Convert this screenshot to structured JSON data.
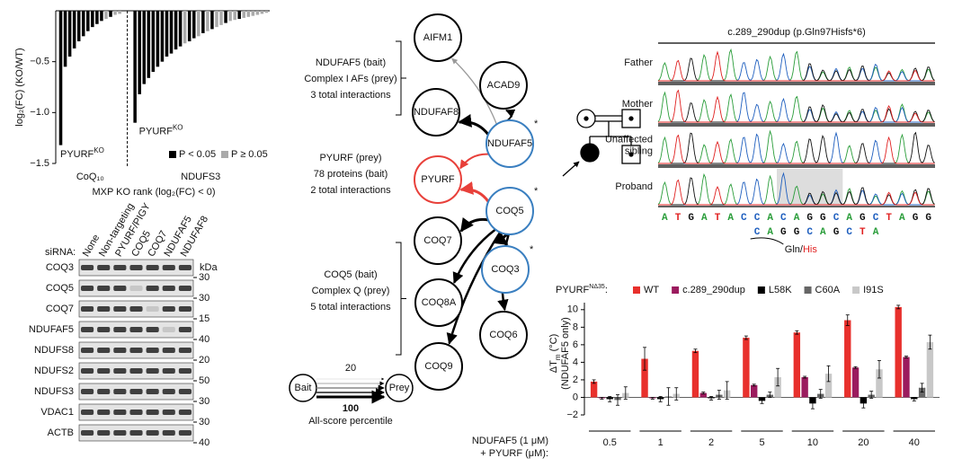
{
  "chart_data": [
    {
      "type": "bar",
      "ylabel": "log₂(FC) (KO/WT)",
      "xlabel": "MXP KO rank (log₂(FC) < 0)",
      "ylim": [
        -1.5,
        0
      ],
      "yticks": [
        {
          "value": -1.5,
          "label": "−1.5"
        },
        {
          "value": -1.0,
          "label": "−1.0"
        },
        {
          "value": -0.5,
          "label": "−0.5"
        }
      ],
      "legend": [
        {
          "name": "P < 0.05",
          "color": "#000000"
        },
        {
          "name": "P ≥ 0.05",
          "color": "#aaaaaa"
        }
      ],
      "groups": [
        {
          "name": "CoQ₁₀",
          "annotation": {
            "base": "PYURF",
            "sup": "KO"
          },
          "values": [
            -1.32,
            -0.55,
            -0.45,
            -0.37,
            -0.3,
            -0.25,
            -0.2,
            -0.16,
            -0.13,
            -0.1,
            -0.08,
            -0.06,
            -0.04,
            -0.03
          ],
          "significant": [
            true,
            true,
            true,
            true,
            true,
            true,
            true,
            true,
            true,
            true,
            false,
            true,
            false,
            false
          ]
        },
        {
          "name": "NDUFS3",
          "annotation": {
            "base": "PYURF",
            "sup": "KO"
          },
          "values": [
            -1.1,
            -0.82,
            -0.72,
            -0.66,
            -0.6,
            -0.55,
            -0.5,
            -0.45,
            -0.42,
            -0.38,
            -0.35,
            -0.32,
            -0.3,
            -0.27,
            -0.25,
            -0.22,
            -0.2,
            -0.18,
            -0.16,
            -0.14,
            -0.12,
            -0.1,
            -0.09,
            -0.08,
            -0.07,
            -0.06,
            -0.05,
            -0.04,
            -0.03,
            -0.02
          ],
          "significant": [
            true,
            true,
            true,
            true,
            true,
            true,
            true,
            true,
            true,
            true,
            true,
            false,
            true,
            true,
            false,
            true,
            false,
            true,
            false,
            false,
            true,
            false,
            false,
            true,
            false,
            false,
            false,
            false,
            false,
            false
          ]
        }
      ]
    },
    {
      "type": "grouped_bar",
      "legend_title": {
        "base": "PYURF",
        "sup": "NΔ35",
        "rest": ":"
      },
      "ylabel": {
        "base": "ΔT",
        "sub": "m",
        "rest": " (°C)",
        "line2": "(NDUFAF5 only)"
      },
      "xlabel": [
        "NDUFAF5 (1 μM)",
        "+ PYURF (μM):"
      ],
      "categories": [
        "0.5",
        "1",
        "2",
        "5",
        "10",
        "20",
        "40"
      ],
      "ylim": [
        -2,
        10.8
      ],
      "yticks": [
        {
          "value": -2,
          "label": "−2"
        },
        0,
        2,
        4,
        6,
        8,
        10
      ],
      "series": [
        {
          "name": "WT",
          "color": "#e8302c",
          "values": [
            1.8,
            4.4,
            5.3,
            6.8,
            7.4,
            8.8,
            10.3
          ],
          "errors": [
            0.2,
            1.3,
            0.2,
            0.2,
            0.2,
            0.6,
            0.2
          ]
        },
        {
          "name": "c.289_290dup",
          "color": "#9b1b5e",
          "values": [
            -0.1,
            -0.1,
            0.5,
            1.4,
            2.3,
            3.4,
            4.6
          ],
          "errors": [
            0.1,
            0.1,
            0.1,
            0.1,
            0.1,
            0.1,
            0.1
          ]
        },
        {
          "name": "L58K",
          "color": "#000000",
          "values": [
            -0.2,
            -0.2,
            -0.1,
            -0.4,
            -0.7,
            -0.7,
            -0.2
          ],
          "errors": [
            0.3,
            0.3,
            0.2,
            0.3,
            0.6,
            0.5,
            0.2
          ]
        },
        {
          "name": "C60A",
          "color": "#666666",
          "values": [
            -0.3,
            0.1,
            0.3,
            0.3,
            0.4,
            0.3,
            1.1
          ],
          "errors": [
            0.6,
            1.0,
            0.5,
            0.3,
            0.5,
            0.4,
            0.5
          ]
        },
        {
          "name": "I91S",
          "color": "#c8c8c8",
          "values": [
            0.5,
            0.4,
            0.8,
            2.3,
            2.7,
            3.2,
            6.3
          ],
          "errors": [
            0.7,
            0.7,
            1.0,
            1.0,
            0.9,
            1.0,
            0.8
          ]
        }
      ]
    }
  ],
  "blot": {
    "siRNA": "siRNA:",
    "kda": "kDa",
    "columns": [
      "None",
      "Non-targeting",
      "PYURF/PIGY",
      "COQ5",
      "COQ7",
      "NDUFAF5",
      "NDUFAF8"
    ],
    "rows": [
      {
        "protein": "COQ3",
        "marker": "30"
      },
      {
        "protein": "COQ5",
        "marker": "30"
      },
      {
        "protein": "COQ7",
        "marker": "15"
      },
      {
        "protein": "NDUFAF5",
        "marker": "40"
      },
      {
        "protein": "NDUFS8",
        "marker": "20"
      },
      {
        "protein": "NDUFS2",
        "marker": "50"
      },
      {
        "protein": "NDUFS3",
        "marker": "30"
      },
      {
        "protein": "VDAC1",
        "marker": "30"
      },
      {
        "protein": "ACTB",
        "marker": "40"
      }
    ]
  },
  "network": {
    "nodes": [
      {
        "label": "AIFM1",
        "color": "#000000"
      },
      {
        "label": "ACAD9",
        "color": "#000000"
      },
      {
        "label": "NDUFAF8",
        "color": "#000000"
      },
      {
        "label": "NDUFAF5",
        "color": "#3a7fc0",
        "mark": "*"
      },
      {
        "label": "PYURF",
        "color": "#e8403a"
      },
      {
        "label": "COQ5",
        "color": "#3a7fc0",
        "mark": "*"
      },
      {
        "label": "COQ7",
        "color": "#000000"
      },
      {
        "label": "COQ3",
        "color": "#3a7fc0",
        "mark": "*"
      },
      {
        "label": "COQ8A",
        "color": "#000000"
      },
      {
        "label": "COQ6",
        "color": "#000000"
      },
      {
        "label": "COQ9",
        "color": "#000000"
      }
    ],
    "annotations": [
      [
        "NDUFAF5 (bait)",
        "Complex I AFs (prey)",
        "3 total interactions"
      ],
      [
        "PYURF (prey)",
        "78 proteins (bait)",
        "2 total interactions"
      ],
      [
        "COQ5 (bait)",
        "Complex Q (prey)",
        "5 total interactions"
      ]
    ],
    "legend": {
      "bait": "Bait",
      "prey": "Prey",
      "low": "20",
      "high": "100",
      "caption": "All-score percentile"
    }
  },
  "sequencing": {
    "title": "c.289_290dup (p.Gln97Hisfs*6)",
    "rows": [
      [
        "Father"
      ],
      [
        "Mother"
      ],
      [
        "Unaffected",
        "sibling"
      ],
      [
        "Proband"
      ]
    ],
    "reference": "ATGATACCACAGGCAGCTAGG",
    "mutant": "CAGGCAGCTA",
    "change": {
      "ref": "Gln",
      "sep": "/",
      "alt": "His"
    }
  }
}
